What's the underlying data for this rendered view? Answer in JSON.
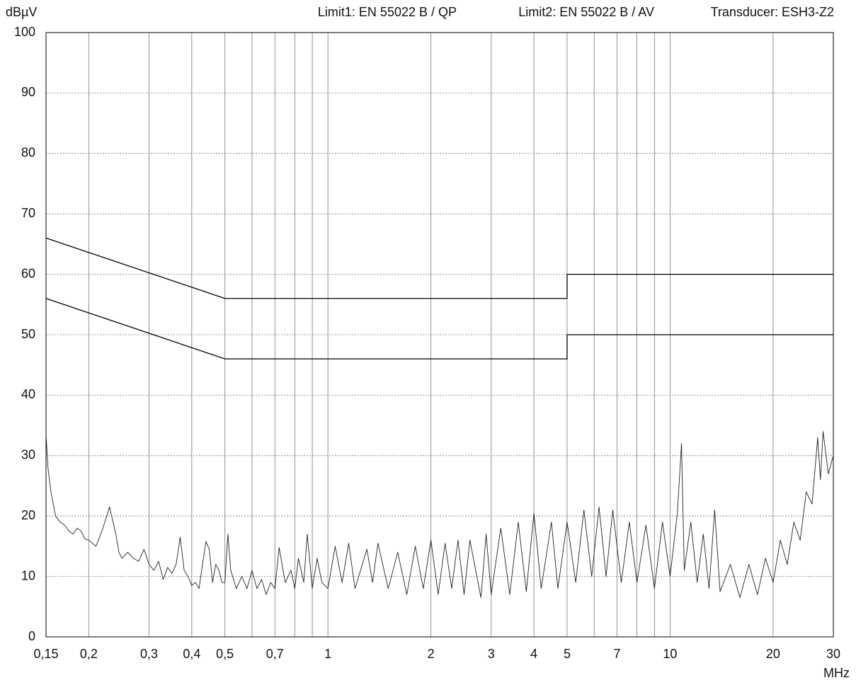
{
  "chart_data": {
    "type": "line",
    "ylabel": "dBµV",
    "xlabel": "MHz",
    "header": [
      "Limit1: EN 55022 B / QP",
      "Limit2: EN 55022 B / AV",
      "Transducer: ESH3-Z2"
    ],
    "xscale": "log",
    "grid": true,
    "xlim": [
      0.15,
      30
    ],
    "ylim": [
      0,
      100
    ],
    "yticks": [
      0,
      10,
      20,
      30,
      40,
      50,
      60,
      70,
      80,
      90,
      100
    ],
    "xticks": [
      {
        "value": 0.15,
        "label": "0,15"
      },
      {
        "value": 0.2,
        "label": "0,2"
      },
      {
        "value": 0.3,
        "label": "0,3"
      },
      {
        "value": 0.4,
        "label": "0,4"
      },
      {
        "value": 0.5,
        "label": "0,5"
      },
      {
        "value": 0.7,
        "label": "0,7"
      },
      1,
      2,
      3,
      4,
      5,
      7,
      10,
      20,
      30
    ],
    "xminor": [
      0.6,
      0.8,
      0.9,
      6,
      8,
      9
    ],
    "series": [
      {
        "color": "#000000",
        "x": [
          0.15,
          0.5,
          5,
          5,
          30
        ],
        "values": [
          66,
          56,
          56,
          60,
          60
        ]
      },
      {
        "color": "#000000",
        "x": [
          0.15,
          0.5,
          5,
          5,
          30
        ],
        "values": [
          56,
          46,
          46,
          50,
          50
        ]
      },
      {
        "color": "#222222",
        "x": [
          0.15,
          0.152,
          0.155,
          0.16,
          0.165,
          0.17,
          0.175,
          0.18,
          0.185,
          0.19,
          0.195,
          0.2,
          0.21,
          0.22,
          0.23,
          0.24,
          0.245,
          0.25,
          0.26,
          0.27,
          0.28,
          0.29,
          0.3,
          0.31,
          0.32,
          0.33,
          0.34,
          0.35,
          0.36,
          0.37,
          0.38,
          0.39,
          0.4,
          0.41,
          0.42,
          0.43,
          0.44,
          0.45,
          0.46,
          0.47,
          0.48,
          0.49,
          0.5,
          0.51,
          0.52,
          0.54,
          0.56,
          0.58,
          0.6,
          0.62,
          0.64,
          0.66,
          0.68,
          0.7,
          0.72,
          0.75,
          0.78,
          0.8,
          0.82,
          0.85,
          0.87,
          0.9,
          0.93,
          0.96,
          1.0,
          1.05,
          1.1,
          1.15,
          1.2,
          1.3,
          1.35,
          1.4,
          1.5,
          1.6,
          1.7,
          1.8,
          1.9,
          2.0,
          2.1,
          2.2,
          2.3,
          2.4,
          2.5,
          2.6,
          2.8,
          2.9,
          3.0,
          3.2,
          3.4,
          3.6,
          3.8,
          4.0,
          4.2,
          4.5,
          4.7,
          5.0,
          5.3,
          5.6,
          5.9,
          6.2,
          6.5,
          6.8,
          7.2,
          7.6,
          8.0,
          8.5,
          9.0,
          9.5,
          10,
          10.5,
          10.8,
          11,
          11.5,
          12,
          12.5,
          13,
          13.5,
          14,
          15,
          16,
          17,
          18,
          19,
          20,
          21,
          22,
          23,
          24,
          25,
          26,
          27,
          27.5,
          28,
          29,
          30
        ],
        "values": [
          33.5,
          28,
          24,
          20,
          19,
          18.5,
          17.5,
          17,
          18,
          17.5,
          16.2,
          16,
          15,
          18,
          21.5,
          17,
          14,
          13,
          14,
          13,
          12.5,
          14.5,
          12,
          11,
          12.5,
          9.5,
          11.5,
          10.5,
          12,
          16.5,
          11,
          10,
          8.5,
          9,
          8,
          12,
          15.8,
          14.5,
          9,
          12,
          11,
          9,
          9,
          17,
          11,
          8,
          10,
          8,
          11,
          8,
          9.5,
          7,
          9,
          8,
          14.8,
          9,
          11,
          8,
          13,
          9,
          17,
          8,
          13,
          9,
          8,
          15,
          9,
          15.5,
          8,
          14.5,
          9,
          15.5,
          8,
          14,
          7,
          15,
          8,
          16,
          7,
          15.5,
          8,
          16,
          7,
          16,
          6.5,
          17,
          7,
          18,
          7,
          19,
          7.5,
          20.5,
          8,
          19,
          8,
          19,
          9,
          21,
          10,
          21.5,
          10,
          21,
          9,
          19,
          9,
          18.5,
          8,
          19,
          10,
          20.5,
          32,
          11,
          19,
          9,
          17,
          8,
          21,
          7.5,
          12,
          6.5,
          12,
          7,
          13,
          9,
          16,
          12,
          19,
          16,
          24,
          22,
          33,
          26,
          34,
          27,
          30
        ]
      }
    ]
  }
}
